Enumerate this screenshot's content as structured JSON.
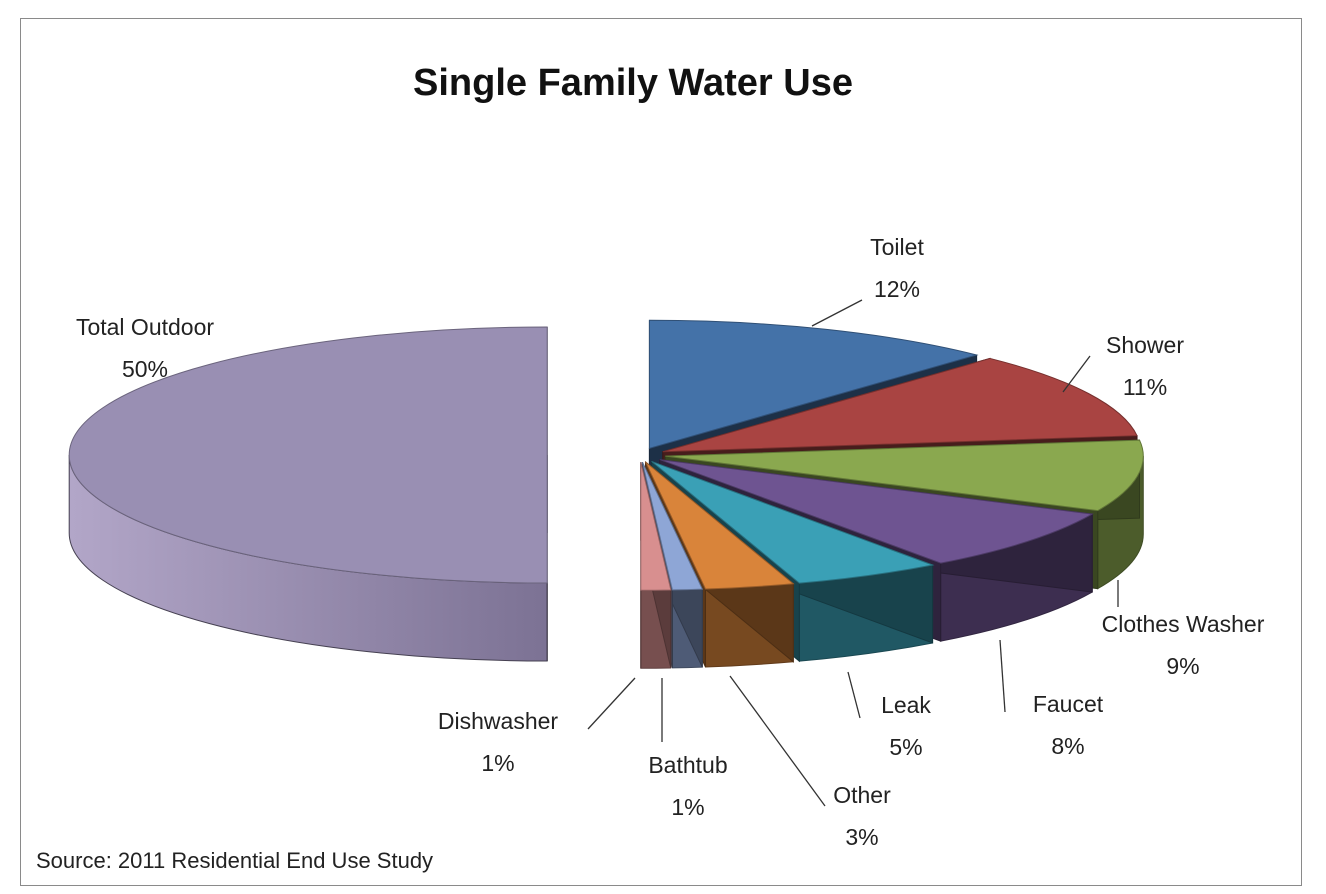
{
  "chart_data": {
    "type": "pie",
    "title": "Single Family Water Use",
    "source": "Source: 2011 Residential End Use Study",
    "slices": [
      {
        "name": "Total Outdoor",
        "value": 50,
        "label": "50%",
        "color": "#998fb3"
      },
      {
        "name": "Toilet",
        "value": 12,
        "label": "12%",
        "color": "#4472a8"
      },
      {
        "name": "Shower",
        "value": 11,
        "label": "11%",
        "color": "#a94442"
      },
      {
        "name": "Clothes Washer",
        "value": 9,
        "label": "9%",
        "color": "#8aa84f"
      },
      {
        "name": "Faucet",
        "value": 8,
        "label": "8%",
        "color": "#6e5491"
      },
      {
        "name": "Leak",
        "value": 5,
        "label": "5%",
        "color": "#3aa0b6"
      },
      {
        "name": "Other",
        "value": 3,
        "label": "3%",
        "color": "#d9843a"
      },
      {
        "name": "Bathtub",
        "value": 1,
        "label": "1%",
        "color": "#8ea6d6"
      },
      {
        "name": "Dishwasher",
        "value": 1,
        "label": "1%",
        "color": "#d88f8f"
      }
    ],
    "legend": "none"
  }
}
